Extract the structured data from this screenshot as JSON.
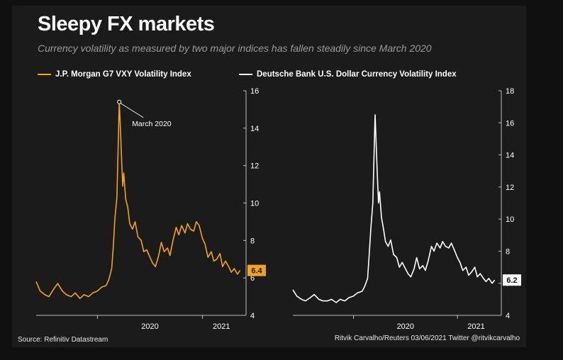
{
  "title": "Sleepy FX markets",
  "subtitle": "Currency volatility as measured by two major indices has fallen steadily since March 2020",
  "source": "Source: Refinitiv Datastream",
  "credit": "Ritvik Carvalho/Reuters 03/06/2021 Twitter @ritvikcarvalho",
  "colors": {
    "background": "#1b1b1b",
    "page": "#0f0f0f",
    "orange": "#f3a21c",
    "white": "#ffffff",
    "axis": "#bdbdbd"
  },
  "chart_data": [
    {
      "type": "line",
      "name": "J.P. Morgan G7 VXY Volatility Index",
      "color": "#f3a21c",
      "x_ticks": [
        "2020",
        "2021"
      ],
      "x_range": [
        "2019-06",
        "2021-05"
      ],
      "ylim": [
        4,
        16
      ],
      "y_ticks": [
        "4",
        "6",
        "8",
        "10",
        "12",
        "14",
        "16"
      ],
      "last_value_label": "6.4",
      "annotation": "March 2020",
      "annotation_point": [
        "2020-03",
        15.4
      ],
      "points": [
        [
          "2019-06",
          5.8
        ],
        [
          "2019-06-15",
          5.3
        ],
        [
          "2019-07",
          5.1
        ],
        [
          "2019-07-15",
          5.0
        ],
        [
          "2019-08",
          5.4
        ],
        [
          "2019-08-15",
          5.7
        ],
        [
          "2019-09",
          5.3
        ],
        [
          "2019-09-15",
          5.1
        ],
        [
          "2019-10",
          5.0
        ],
        [
          "2019-10-15",
          5.2
        ],
        [
          "2019-11",
          4.9
        ],
        [
          "2019-11-15",
          5.1
        ],
        [
          "2019-12",
          5.0
        ],
        [
          "2019-12-15",
          5.2
        ],
        [
          "2020-01",
          5.3
        ],
        [
          "2020-01-15",
          5.5
        ],
        [
          "2020-02",
          5.6
        ],
        [
          "2020-02-10",
          5.9
        ],
        [
          "2020-02-20",
          6.5
        ],
        [
          "2020-02-25",
          7.5
        ],
        [
          "2020-03",
          9.2
        ],
        [
          "2020-03-08",
          10.3
        ],
        [
          "2020-03-12",
          13.0
        ],
        [
          "2020-03-16",
          15.4
        ],
        [
          "2020-03-20",
          14.0
        ],
        [
          "2020-03-24",
          12.4
        ],
        [
          "2020-03-28",
          10.9
        ],
        [
          "2020-04",
          11.6
        ],
        [
          "2020-04-08",
          10.2
        ],
        [
          "2020-04-15",
          9.8
        ],
        [
          "2020-04-22",
          8.9
        ],
        [
          "2020-05",
          8.6
        ],
        [
          "2020-05-10",
          9.0
        ],
        [
          "2020-05-20",
          8.2
        ],
        [
          "2020-06",
          8.0
        ],
        [
          "2020-06-10",
          7.4
        ],
        [
          "2020-06-20",
          7.5
        ],
        [
          "2020-07",
          7.1
        ],
        [
          "2020-07-10",
          6.8
        ],
        [
          "2020-07-20",
          6.6
        ],
        [
          "2020-08",
          7.2
        ],
        [
          "2020-08-10",
          7.9
        ],
        [
          "2020-08-20",
          7.4
        ],
        [
          "2020-09",
          7.6
        ],
        [
          "2020-09-10",
          7.2
        ],
        [
          "2020-09-20",
          8.0
        ],
        [
          "2020-10",
          8.7
        ],
        [
          "2020-10-10",
          8.3
        ],
        [
          "2020-10-20",
          8.8
        ],
        [
          "2020-11",
          8.4
        ],
        [
          "2020-11-10",
          8.9
        ],
        [
          "2020-11-20",
          8.6
        ],
        [
          "2020-12",
          8.5
        ],
        [
          "2020-12-10",
          9.0
        ],
        [
          "2020-12-20",
          8.8
        ],
        [
          "2021-01",
          8.1
        ],
        [
          "2021-01-10",
          7.8
        ],
        [
          "2021-01-20",
          7.1
        ],
        [
          "2021-02",
          7.4
        ],
        [
          "2021-02-10",
          6.9
        ],
        [
          "2021-02-20",
          7.0
        ],
        [
          "2021-03",
          7.3
        ],
        [
          "2021-03-10",
          6.6
        ],
        [
          "2021-03-20",
          6.9
        ],
        [
          "2021-04",
          6.6
        ],
        [
          "2021-04-10",
          6.3
        ],
        [
          "2021-04-20",
          6.5
        ],
        [
          "2021-05",
          6.2
        ],
        [
          "2021-05-10",
          6.4
        ]
      ]
    },
    {
      "type": "line",
      "name": "Deutsche Bank U.S. Dollar Currency Volatility Index",
      "color": "#ffffff",
      "x_ticks": [
        "2020",
        "2021"
      ],
      "x_range": [
        "2019-06",
        "2021-05"
      ],
      "ylim": [
        4,
        18
      ],
      "y_ticks": [
        "4",
        "6",
        "8",
        "10",
        "12",
        "14",
        "16",
        "18"
      ],
      "last_value_label": "6.2",
      "points": [
        [
          "2019-06",
          5.6
        ],
        [
          "2019-06-15",
          5.2
        ],
        [
          "2019-07",
          5.0
        ],
        [
          "2019-07-15",
          4.9
        ],
        [
          "2019-08",
          5.1
        ],
        [
          "2019-08-15",
          5.3
        ],
        [
          "2019-09",
          5.0
        ],
        [
          "2019-09-15",
          4.9
        ],
        [
          "2019-10",
          4.9
        ],
        [
          "2019-10-15",
          5.0
        ],
        [
          "2019-11",
          4.8
        ],
        [
          "2019-11-15",
          5.0
        ],
        [
          "2019-12",
          4.9
        ],
        [
          "2019-12-15",
          5.1
        ],
        [
          "2020-01",
          5.2
        ],
        [
          "2020-01-15",
          5.4
        ],
        [
          "2020-02",
          5.5
        ],
        [
          "2020-02-10",
          5.8
        ],
        [
          "2020-02-20",
          6.3
        ],
        [
          "2020-02-25",
          7.6
        ],
        [
          "2020-03",
          9.4
        ],
        [
          "2020-03-08",
          11.0
        ],
        [
          "2020-03-12",
          13.8
        ],
        [
          "2020-03-16",
          16.5
        ],
        [
          "2020-03-20",
          14.6
        ],
        [
          "2020-03-24",
          12.7
        ],
        [
          "2020-03-28",
          11.0
        ],
        [
          "2020-04",
          11.7
        ],
        [
          "2020-04-08",
          10.1
        ],
        [
          "2020-04-15",
          9.4
        ],
        [
          "2020-04-22",
          8.6
        ],
        [
          "2020-05",
          8.3
        ],
        [
          "2020-05-10",
          8.7
        ],
        [
          "2020-05-20",
          7.8
        ],
        [
          "2020-06",
          7.6
        ],
        [
          "2020-06-10",
          7.0
        ],
        [
          "2020-06-20",
          7.3
        ],
        [
          "2020-07",
          6.9
        ],
        [
          "2020-07-10",
          6.6
        ],
        [
          "2020-07-20",
          6.4
        ],
        [
          "2020-08",
          6.9
        ],
        [
          "2020-08-10",
          7.6
        ],
        [
          "2020-08-20",
          6.9
        ],
        [
          "2020-09",
          7.1
        ],
        [
          "2020-09-10",
          6.8
        ],
        [
          "2020-09-20",
          7.4
        ],
        [
          "2020-10",
          8.3
        ],
        [
          "2020-10-10",
          8.0
        ],
        [
          "2020-10-20",
          8.5
        ],
        [
          "2020-11",
          8.2
        ],
        [
          "2020-11-10",
          8.6
        ],
        [
          "2020-11-20",
          8.3
        ],
        [
          "2020-12",
          8.2
        ],
        [
          "2020-12-10",
          8.5
        ],
        [
          "2020-12-20",
          8.1
        ],
        [
          "2021-01",
          7.6
        ],
        [
          "2021-01-10",
          7.3
        ],
        [
          "2021-01-20",
          6.8
        ],
        [
          "2021-02",
          7.0
        ],
        [
          "2021-02-10",
          6.5
        ],
        [
          "2021-02-20",
          6.7
        ],
        [
          "2021-03",
          7.0
        ],
        [
          "2021-03-10",
          6.4
        ],
        [
          "2021-03-20",
          6.6
        ],
        [
          "2021-04",
          6.3
        ],
        [
          "2021-04-10",
          6.1
        ],
        [
          "2021-04-20",
          6.3
        ],
        [
          "2021-05",
          6.0
        ],
        [
          "2021-05-10",
          6.2
        ]
      ]
    }
  ]
}
